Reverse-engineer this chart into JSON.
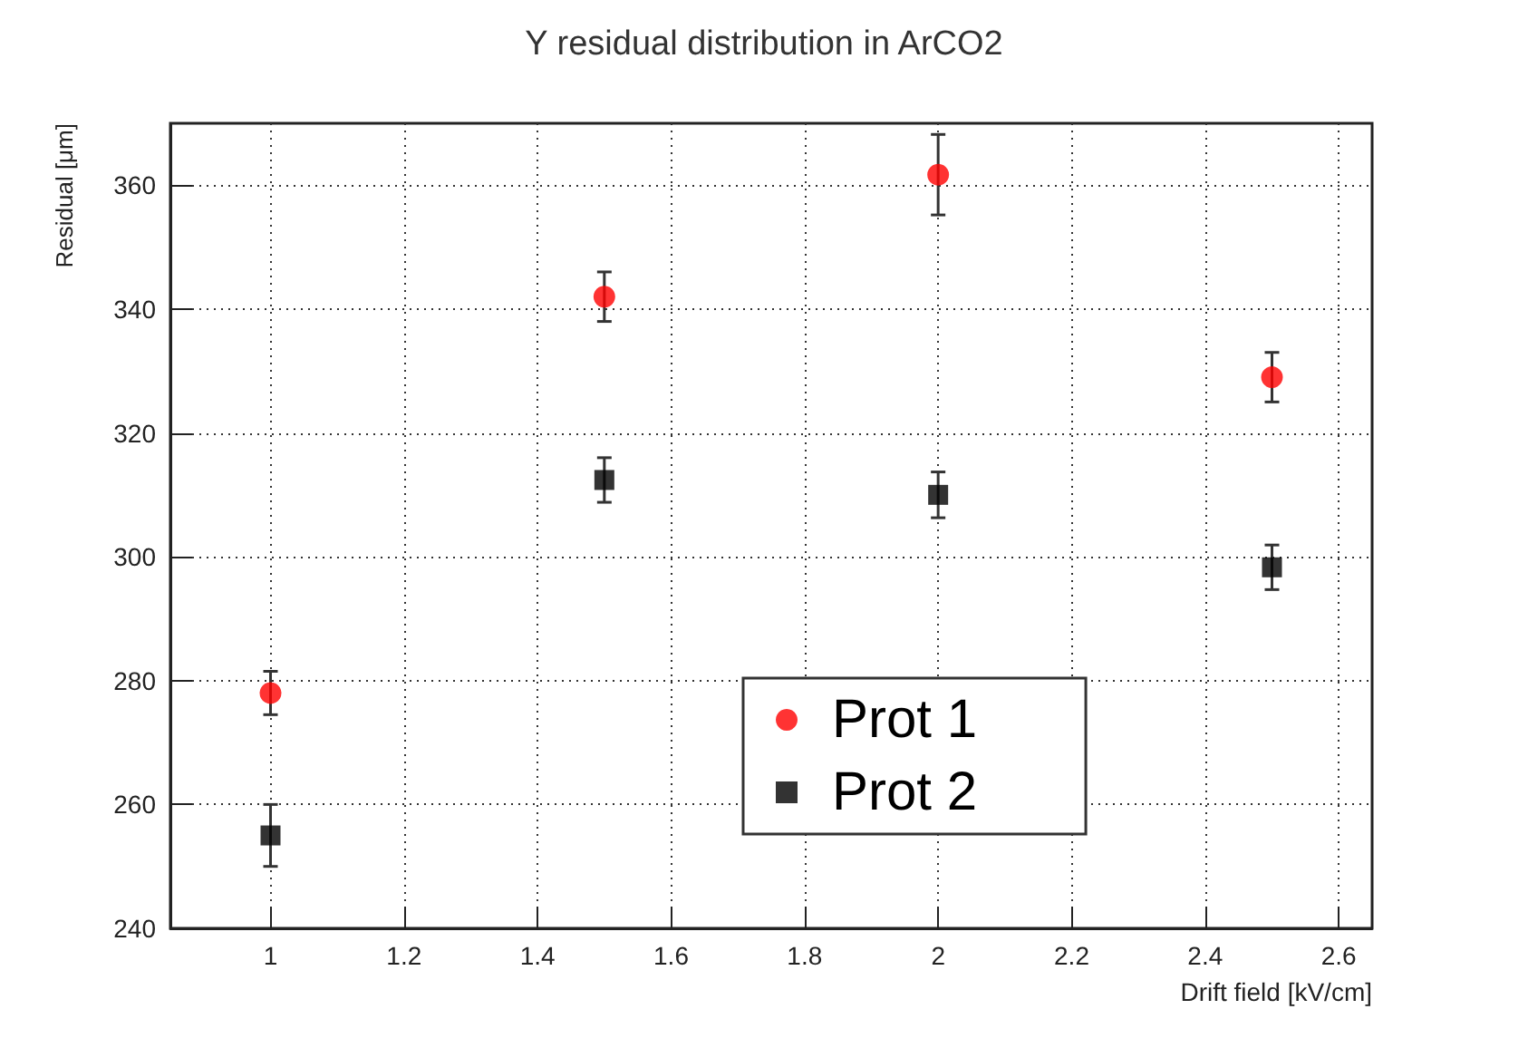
{
  "chart_data": {
    "type": "scatter",
    "title": "Y residual distribution in ArCO2",
    "xlabel": "Drift field [kV/cm]",
    "ylabel": "Residual [μm]",
    "x": [
      1,
      1.5,
      2,
      2.5
    ],
    "series": [
      {
        "name": "Prot 1",
        "color": "#ff0000",
        "marker": "circle",
        "values": [
          278,
          342,
          361.7,
          329
        ],
        "errors": [
          3.5,
          4,
          6.5,
          4
        ]
      },
      {
        "name": "Prot 2",
        "color": "#000000",
        "marker": "square",
        "values": [
          255,
          312.4,
          310,
          298.3
        ],
        "errors": [
          5,
          3.6,
          3.7,
          3.6
        ]
      }
    ],
    "xlim": [
      0.85,
      2.65
    ],
    "xticks": [
      1,
      1.2,
      1.4,
      1.6,
      1.8,
      2,
      2.2,
      2.4,
      2.6
    ],
    "ylim": [
      240,
      370
    ],
    "yticks": [
      240,
      260,
      280,
      300,
      320,
      340,
      360
    ],
    "grid": true,
    "legend": "bottom"
  }
}
